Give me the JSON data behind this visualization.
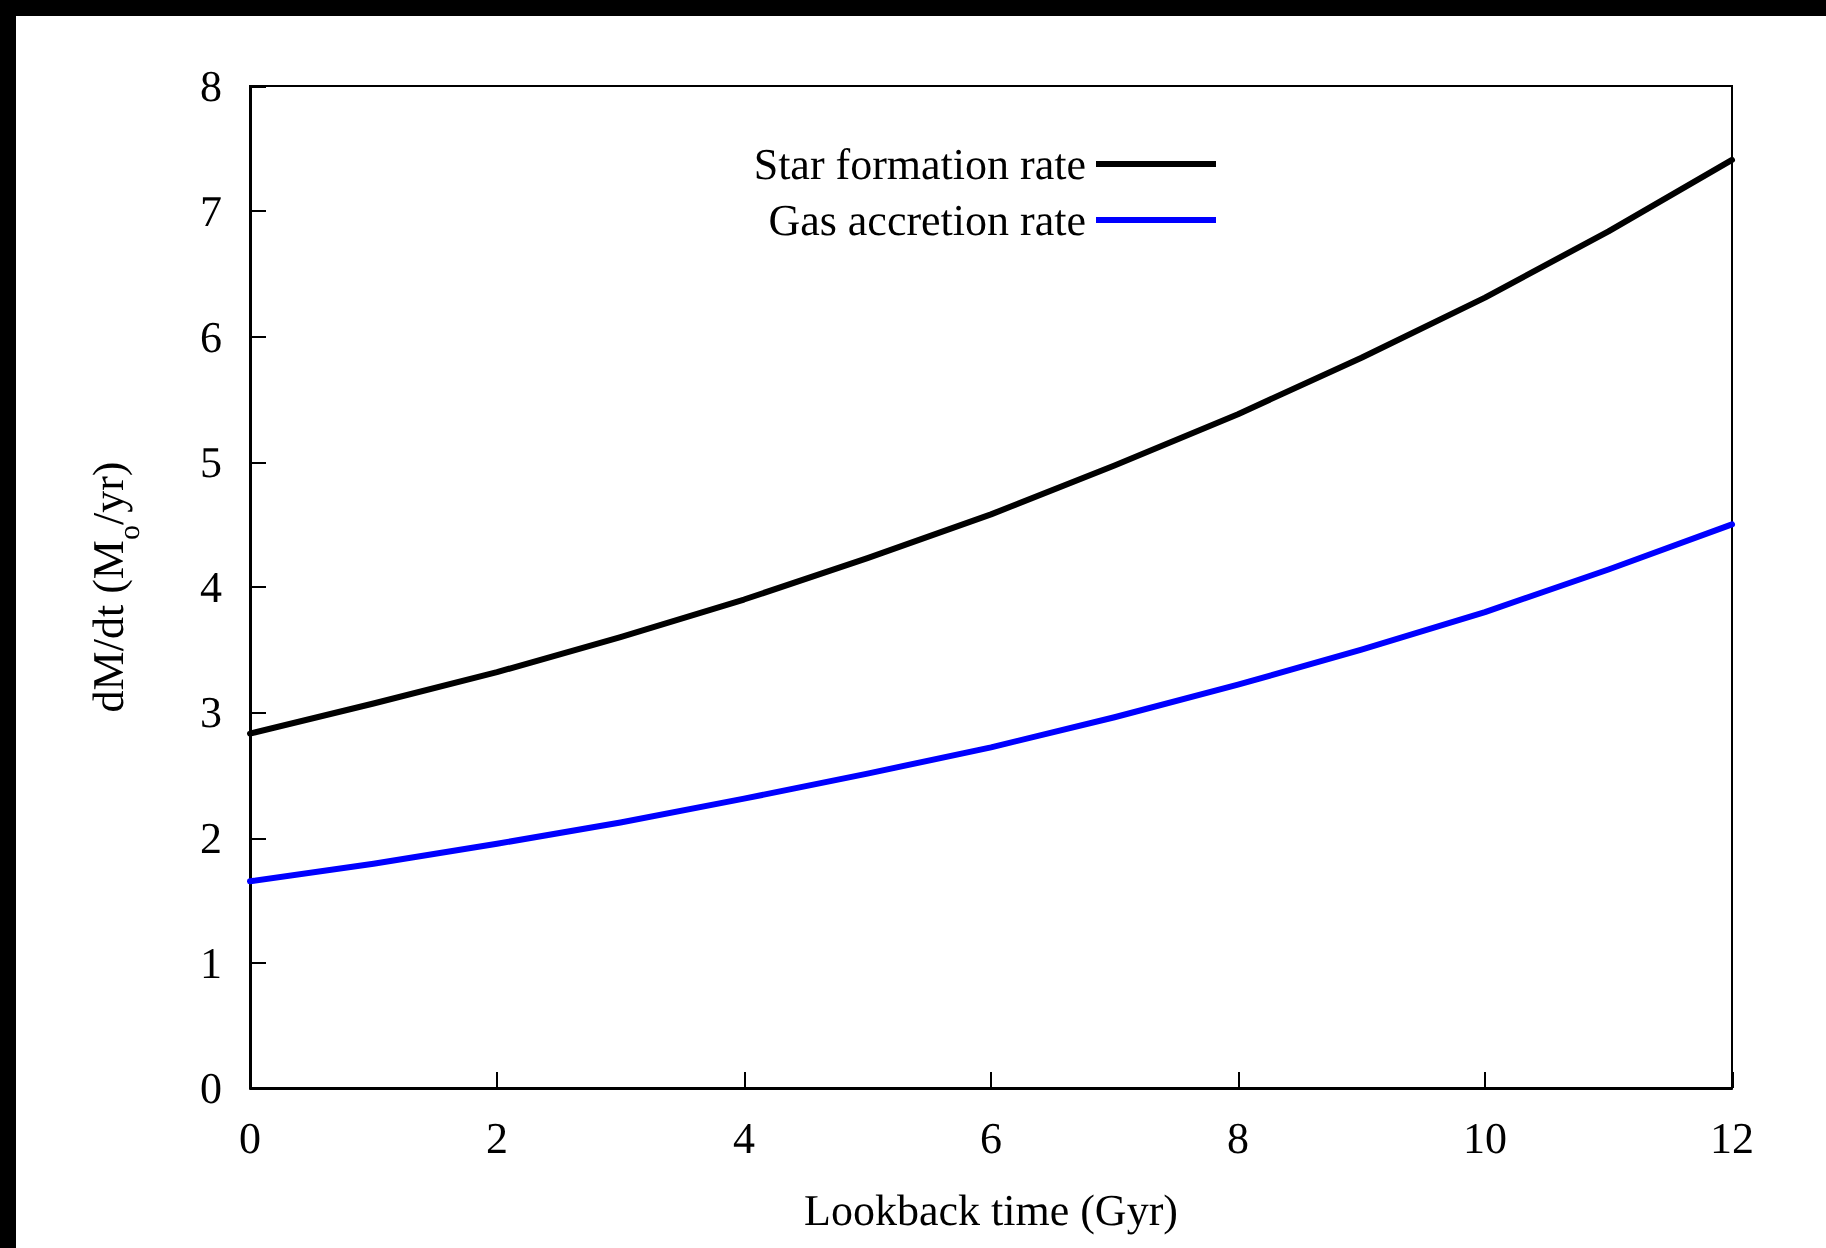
{
  "chart_data": {
    "type": "line",
    "xlabel": "Lookback time (Gyr)",
    "ylabel": "dM/dt (M$_{o}$/yr)",
    "xlim": [
      0,
      12
    ],
    "xticks": [
      0,
      2,
      4,
      6,
      8,
      10,
      12
    ],
    "ylim": [
      0,
      8
    ],
    "yticks": [
      0,
      1,
      2,
      3,
      4,
      5,
      6,
      7,
      8
    ],
    "x": [
      0,
      1,
      2,
      3,
      4,
      5,
      6,
      7,
      8,
      9,
      10,
      11,
      12
    ],
    "legend": "top right",
    "grid": false,
    "marker": "none",
    "line_style": "solid",
    "series": [
      {
        "name": "Star formation rate",
        "color": "#000000",
        "values": [
          2.83,
          3.07,
          3.32,
          3.6,
          3.9,
          4.23,
          4.58,
          4.97,
          5.38,
          5.83,
          6.31,
          6.84,
          7.41
        ]
      },
      {
        "name": "Gas accretion rate",
        "color": "#0000ff",
        "values": [
          1.65,
          1.79,
          1.95,
          2.12,
          2.31,
          2.51,
          2.72,
          2.96,
          3.22,
          3.5,
          3.8,
          4.14,
          4.5
        ]
      }
    ]
  }
}
